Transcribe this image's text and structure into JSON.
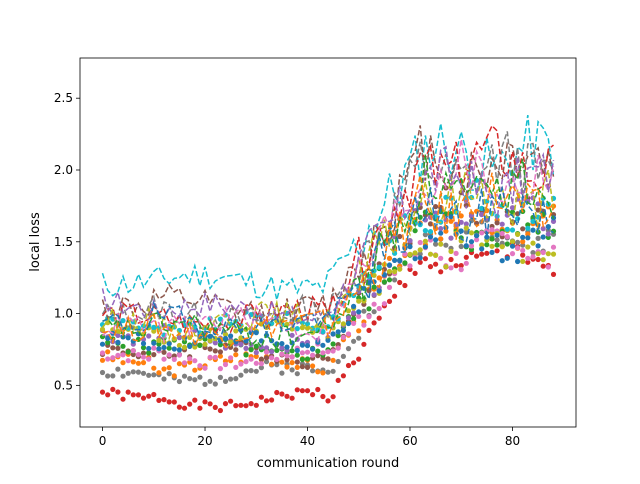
{
  "chart_data": {
    "type": "line",
    "title": "",
    "xlabel": "communication round",
    "ylabel": "local loss",
    "xlim": [
      -4.4,
      92.4
    ],
    "ylim": [
      0.21,
      2.78
    ],
    "x_ticks": [
      0,
      20,
      40,
      60,
      80
    ],
    "y_ticks": [
      0.5,
      1.0,
      1.5,
      2.0,
      2.5
    ],
    "x_tick_labels": [
      "0",
      "20",
      "40",
      "60",
      "80"
    ],
    "y_tick_labels": [
      "0.5",
      "1.0",
      "1.5",
      "2.0",
      "2.5"
    ],
    "rounds": 89,
    "grid": false,
    "legend": "none",
    "series_styles": [
      {
        "style": "dots",
        "color": "#d62728",
        "start": 0.45,
        "plateau": 0.4,
        "end": 1.38,
        "amp": 0.035,
        "seed": 1
      },
      {
        "style": "dots",
        "color": "#7f7f7f",
        "start": 0.6,
        "plateau": 0.58,
        "end": 1.55,
        "amp": 0.045,
        "seed": 2
      },
      {
        "style": "dots",
        "color": "#ff7f0e",
        "start": 0.7,
        "plateau": 0.65,
        "end": 1.62,
        "amp": 0.045,
        "seed": 3
      },
      {
        "style": "dots",
        "color": "#8c564b",
        "start": 0.76,
        "plateau": 0.72,
        "end": 1.7,
        "amp": 0.05,
        "seed": 4
      },
      {
        "style": "dots",
        "color": "#2ca02c",
        "start": 0.8,
        "plateau": 0.76,
        "end": 1.58,
        "amp": 0.05,
        "seed": 5
      },
      {
        "style": "dots",
        "color": "#9467bd",
        "start": 0.86,
        "plateau": 0.82,
        "end": 1.66,
        "amp": 0.05,
        "seed": 6
      },
      {
        "style": "dots",
        "color": "#e377c2",
        "start": 0.72,
        "plateau": 0.7,
        "end": 1.45,
        "amp": 0.045,
        "seed": 7
      },
      {
        "style": "dots",
        "color": "#bcbd22",
        "start": 0.9,
        "plateau": 0.86,
        "end": 1.5,
        "amp": 0.05,
        "seed": 8
      },
      {
        "style": "dots",
        "color": "#17becf",
        "start": 0.95,
        "plateau": 0.92,
        "end": 1.75,
        "amp": 0.05,
        "seed": 9
      },
      {
        "style": "dots",
        "color": "#1f77b4",
        "start": 0.83,
        "plateau": 0.8,
        "end": 1.52,
        "amp": 0.05,
        "seed": 10
      },
      {
        "style": "dashed",
        "color": "#17becf",
        "start": 1.2,
        "plateau": 1.22,
        "end": 2.1,
        "amp": 0.1,
        "seed": 11
      },
      {
        "style": "dashed",
        "color": "#8c564b",
        "start": 1.05,
        "plateau": 1.05,
        "end": 2.05,
        "amp": 0.1,
        "seed": 12
      },
      {
        "style": "dashed",
        "color": "#7f7f7f",
        "start": 0.98,
        "plateau": 1.0,
        "end": 2.0,
        "amp": 0.1,
        "seed": 13
      },
      {
        "style": "dashed",
        "color": "#d62728",
        "start": 1.0,
        "plateau": 0.98,
        "end": 2.05,
        "amp": 0.09,
        "seed": 14
      },
      {
        "style": "dashed",
        "color": "#bcbd22",
        "start": 0.95,
        "plateau": 0.95,
        "end": 1.8,
        "amp": 0.09,
        "seed": 15
      },
      {
        "style": "dashed",
        "color": "#e377c2",
        "start": 0.92,
        "plateau": 0.92,
        "end": 1.95,
        "amp": 0.09,
        "seed": 16
      },
      {
        "style": "dashed",
        "color": "#9467bd",
        "start": 1.1,
        "plateau": 1.02,
        "end": 1.9,
        "amp": 0.09,
        "seed": 17
      },
      {
        "style": "dashed",
        "color": "#2ca02c",
        "start": 0.9,
        "plateau": 0.88,
        "end": 1.85,
        "amp": 0.09,
        "seed": 18
      },
      {
        "style": "dashed",
        "color": "#1f77b4",
        "start": 0.93,
        "plateau": 0.94,
        "end": 1.7,
        "amp": 0.09,
        "seed": 19
      },
      {
        "style": "dashed",
        "color": "#ff7f0e",
        "start": 0.88,
        "plateau": 0.9,
        "end": 1.75,
        "amp": 0.09,
        "seed": 20
      }
    ]
  }
}
